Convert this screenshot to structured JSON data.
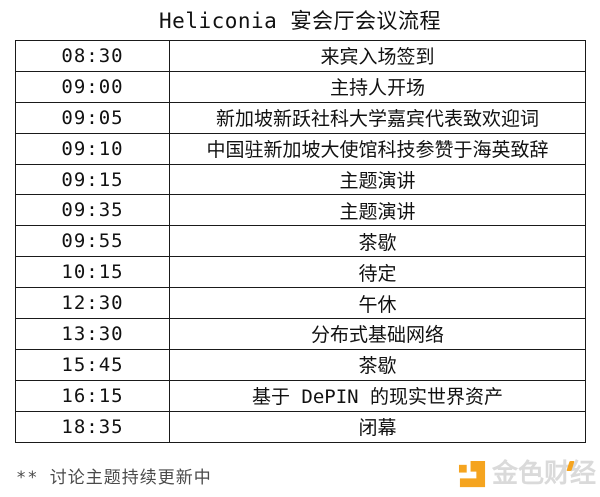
{
  "page": {
    "title": "Heliconia 宴会厅会议流程",
    "footnote": "** 讨论主题持续更新中"
  },
  "schedule": {
    "rows": [
      {
        "time": "08:30",
        "event": "来宾入场签到"
      },
      {
        "time": "09:00",
        "event": "主持人开场"
      },
      {
        "time": "09:05",
        "event": "新加坡新跃社科大学嘉宾代表致欢迎词"
      },
      {
        "time": "09:10",
        "event": "中国驻新加坡大使馆科技参赞于海英致辞"
      },
      {
        "time": "09:15",
        "event": "主题演讲"
      },
      {
        "time": "09:35",
        "event": "主题演讲"
      },
      {
        "time": "09:55",
        "event": "茶歇"
      },
      {
        "time": "10:15",
        "event": "待定"
      },
      {
        "time": "12:30",
        "event": "午休"
      },
      {
        "time": "13:30",
        "event": "分布式基础网络"
      },
      {
        "time": "15:45",
        "event": "茶歇"
      },
      {
        "time": "16:15",
        "event": "基于 DePIN 的现实世界资产"
      },
      {
        "time": "18:35",
        "event": "闭幕"
      }
    ]
  },
  "watermark": {
    "brand": "金色财经",
    "accent_color": "#F5A41F",
    "text_color": "#DADADA"
  },
  "colors": {
    "background": "#FFFFFF",
    "text": "#111111",
    "border": "#1A1A1A",
    "footnote_text": "#4A4A4A"
  }
}
